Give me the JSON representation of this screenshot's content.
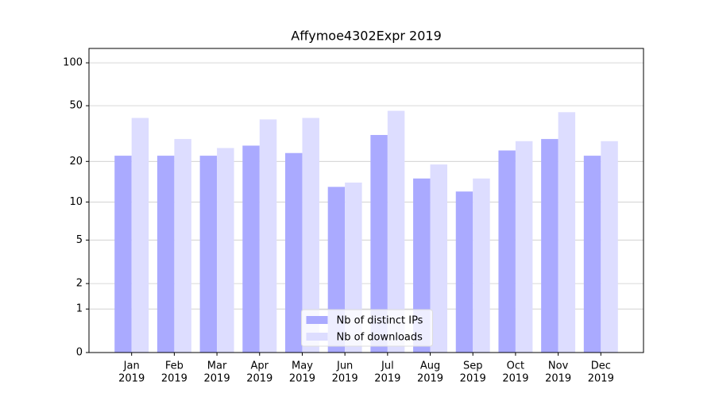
{
  "chart_data": {
    "type": "bar",
    "title": "Affymoe4302Expr 2019",
    "categories": [
      [
        "Jan",
        "2019"
      ],
      [
        "Feb",
        "2019"
      ],
      [
        "Mar",
        "2019"
      ],
      [
        "Apr",
        "2019"
      ],
      [
        "May",
        "2019"
      ],
      [
        "Jun",
        "2019"
      ],
      [
        "Jul",
        "2019"
      ],
      [
        "Aug",
        "2019"
      ],
      [
        "Sep",
        "2019"
      ],
      [
        "Oct",
        "2019"
      ],
      [
        "Nov",
        "2019"
      ],
      [
        "Dec",
        "2019"
      ]
    ],
    "series": [
      {
        "name": "Nb of distinct IPs",
        "color": "#aaaaff",
        "values": [
          22,
          22,
          22,
          26,
          23,
          13,
          31,
          15,
          12,
          24,
          29,
          22
        ]
      },
      {
        "name": "Nb of downloads",
        "color": "#ddddff",
        "values": [
          41,
          29,
          25,
          40,
          41,
          14,
          46,
          19,
          15,
          28,
          45,
          28
        ]
      }
    ],
    "yscale": "log1p",
    "ylim": [
      0,
      126
    ],
    "yticks": [
      0,
      1,
      2,
      5,
      10,
      20,
      50,
      100
    ],
    "grid": true,
    "legend": "lower center"
  }
}
